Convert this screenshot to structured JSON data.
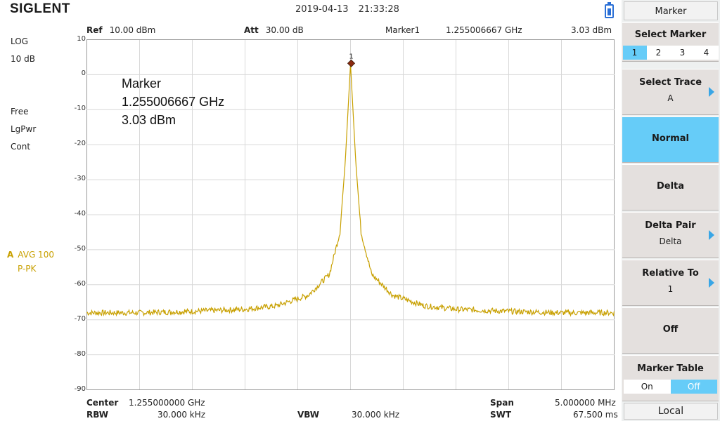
{
  "header": {
    "brand": "SIGLENT",
    "date": "2019-04-13",
    "time": "21:33:28",
    "ref_label": "Ref",
    "ref_value": "10.00 dBm",
    "att_label": "Att",
    "att_value": "30.00 dB",
    "marker_label": "Marker1",
    "marker_freq": "1.255006667 GHz",
    "marker_level": "3.03 dBm"
  },
  "left_info": {
    "scale_type": "LOG",
    "scale_div": "10 dB",
    "mode": "Free",
    "detector": "LgPwr",
    "sweep": "Cont",
    "trace_letter": "A",
    "trace_avg": "AVG 100",
    "trace_det": "P-PK"
  },
  "marker_readout": {
    "title": "Marker",
    "freq": "1.255006667 GHz",
    "level": "3.03 dBm",
    "flag": "1"
  },
  "footer": {
    "center_label": "Center",
    "center_value": "1.255000000 GHz",
    "rbw_label": "RBW",
    "rbw_value": "30.000 kHz",
    "vbw_label": "VBW",
    "vbw_value": "30.000 kHz",
    "span_label": "Span",
    "span_value": "5.000000 MHz",
    "swt_label": "SWT",
    "swt_value": "67.500 ms"
  },
  "softkeys": {
    "menu_title": "Marker",
    "select_marker": "Select Marker",
    "marker_tabs": [
      "1",
      "2",
      "3",
      "4"
    ],
    "select_trace": "Select Trace",
    "select_trace_value": "A",
    "normal": "Normal",
    "delta": "Delta",
    "delta_pair": "Delta Pair",
    "delta_pair_value": "Delta",
    "relative_to": "Relative To",
    "relative_to_value": "1",
    "off": "Off",
    "marker_table": "Marker Table",
    "marker_table_on": "On",
    "marker_table_off": "Off",
    "local": "Local"
  },
  "colors": {
    "trace": "#c8a000",
    "active_key": "#66ccf8",
    "grid": "#d8d8d8",
    "marker": "#8b2a10"
  },
  "chart_data": {
    "type": "line",
    "x_unit": "GHz",
    "xlim": [
      1.2525,
      1.2575
    ],
    "ylim": [
      -90,
      10
    ],
    "y_ticks": [
      10,
      0,
      -10,
      -20,
      -30,
      -40,
      -50,
      -60,
      -70,
      -80,
      -90
    ],
    "grid": true,
    "series": [
      {
        "x": [
          1.2525,
          1.253,
          1.2535,
          1.254,
          1.2543,
          1.2546,
          1.2548,
          1.2549,
          1.25495,
          1.255,
          1.25505,
          1.2551,
          1.2552,
          1.2554,
          1.2557,
          1.256,
          1.2565,
          1.257,
          1.2575
        ],
        "y": [
          -68,
          -68,
          -67.6,
          -67,
          -66,
          -63,
          -57,
          -45,
          -25,
          3.03,
          -25,
          -45,
          -57,
          -63,
          -66,
          -67,
          -67.6,
          -68,
          -68
        ]
      }
    ],
    "marker": {
      "x": 1.255006667,
      "y": 3.03,
      "label": "1"
    }
  }
}
